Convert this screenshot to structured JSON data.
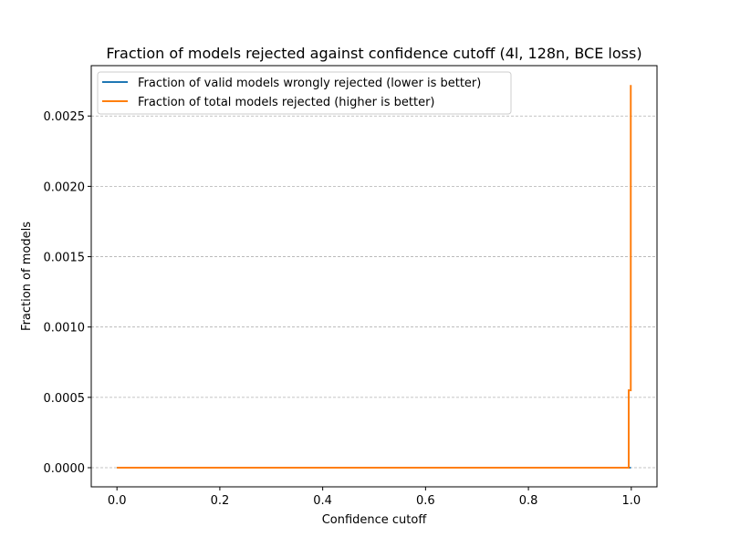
{
  "chart_data": {
    "type": "line",
    "title": "Fraction of models rejected against confidence cutoff (4l, 128n, BCE loss)",
    "xlabel": "Confidence cutoff",
    "ylabel": "Fraction of models",
    "xlim": [
      -0.05,
      1.05
    ],
    "ylim": [
      -0.000136,
      0.002858
    ],
    "x_ticks": [
      0.0,
      0.2,
      0.4,
      0.6,
      0.8,
      1.0
    ],
    "x_tick_labels": [
      "0.0",
      "0.2",
      "0.4",
      "0.6",
      "0.8",
      "1.0"
    ],
    "y_ticks": [
      0.0,
      0.0005,
      0.001,
      0.0015,
      0.002,
      0.0025
    ],
    "y_tick_labels": [
      "0.0000",
      "0.0005",
      "0.0010",
      "0.0015",
      "0.0020",
      "0.0025"
    ],
    "grid": {
      "y": true,
      "x": false,
      "style": "dashed"
    },
    "legend": {
      "placement": "top-left"
    },
    "series": [
      {
        "name": "Fraction of valid models wrongly rejected (lower is better)",
        "color": "#1f77b4",
        "step": true,
        "x": [
          0.0,
          0.995,
          0.995,
          0.999,
          0.999
        ],
        "y": [
          0.0,
          0.0,
          0.0,
          0.0,
          0.0
        ]
      },
      {
        "name": "Fraction of total models rejected (higher is better)",
        "color": "#ff7f0e",
        "step": true,
        "x": [
          0.0,
          0.995,
          0.995,
          0.999,
          0.999
        ],
        "y": [
          0.0,
          0.0,
          0.00055,
          0.00055,
          0.00272
        ]
      }
    ]
  }
}
